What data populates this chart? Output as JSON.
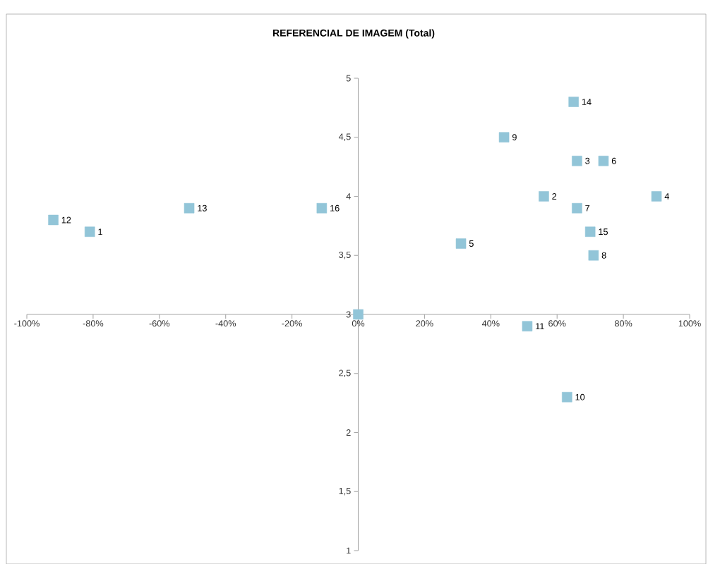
{
  "chart_data": {
    "type": "scatter",
    "title": "REFERENCIAL DE IMAGEM (Total)",
    "xlim": [
      -100,
      100
    ],
    "xticks": [
      {
        "value": -100,
        "label": "-100%"
      },
      {
        "value": -80,
        "label": "-80%"
      },
      {
        "value": -60,
        "label": "-60%"
      },
      {
        "value": -40,
        "label": "-40%"
      },
      {
        "value": -20,
        "label": "-20%"
      },
      {
        "value": 0,
        "label": "0%"
      },
      {
        "value": 20,
        "label": "20%"
      },
      {
        "value": 40,
        "label": "40%"
      },
      {
        "value": 60,
        "label": "60%"
      },
      {
        "value": 80,
        "label": "80%"
      },
      {
        "value": 100,
        "label": "100%"
      }
    ],
    "ylim": [
      1,
      5
    ],
    "yticks": [
      1,
      {
        "value": 1.5,
        "label": "1,5"
      },
      2,
      {
        "value": 2.5,
        "label": "2,5"
      },
      3,
      {
        "value": 3.5,
        "label": "3,5"
      },
      4,
      {
        "value": 4.5,
        "label": "4,5"
      },
      5
    ],
    "series": [
      {
        "color": "#92c5d8",
        "x": [
          -81,
          56,
          66,
          90,
          31,
          74,
          66,
          71,
          44,
          63,
          51,
          -92,
          -51,
          65,
          70,
          -11,
          0
        ],
        "values": [
          3.7,
          4.0,
          4.3,
          4.0,
          3.6,
          4.3,
          3.9,
          3.5,
          4.5,
          2.3,
          2.9,
          3.8,
          3.9,
          4.8,
          3.7,
          3.9,
          3.0
        ]
      }
    ],
    "annotations": [
      {
        "text": "1",
        "x": -81,
        "y": 3.7
      },
      {
        "text": "2",
        "x": 56,
        "y": 4.0
      },
      {
        "text": "3",
        "x": 66,
        "y": 4.3
      },
      {
        "text": "4",
        "x": 90,
        "y": 4.0
      },
      {
        "text": "5",
        "x": 31,
        "y": 3.6
      },
      {
        "text": "6",
        "x": 74,
        "y": 4.3
      },
      {
        "text": "7",
        "x": 66,
        "y": 3.9
      },
      {
        "text": "8",
        "x": 71,
        "y": 3.5
      },
      {
        "text": "9",
        "x": 44,
        "y": 4.5
      },
      {
        "text": "10",
        "x": 63,
        "y": 2.3
      },
      {
        "text": "11",
        "x": 51,
        "y": 2.9
      },
      {
        "text": "12",
        "x": -92,
        "y": 3.8
      },
      {
        "text": "13",
        "x": -51,
        "y": 3.9
      },
      {
        "text": "14",
        "x": 65,
        "y": 4.8
      },
      {
        "text": "15",
        "x": 70,
        "y": 3.7
      },
      {
        "text": "16",
        "x": -11,
        "y": 3.9
      }
    ],
    "marker": "square"
  }
}
